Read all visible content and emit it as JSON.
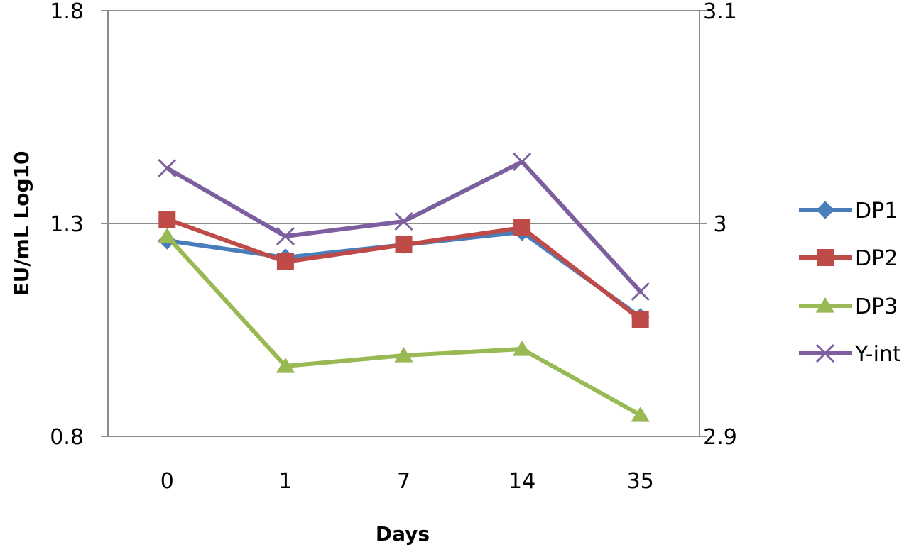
{
  "chart_data": {
    "type": "line",
    "title": "",
    "xlabel": "Days",
    "ylabel": "EU/mL Log10",
    "categories": [
      "0",
      "1",
      "7",
      "14",
      "35"
    ],
    "y_left": {
      "min": 0.8,
      "max": 1.8,
      "ticks": [
        "0.8",
        "1.3",
        "1.8"
      ],
      "tick_values": [
        0.8,
        1.3,
        1.8
      ]
    },
    "y_right": {
      "min": 2.9,
      "max": 3.1,
      "ticks": [
        "2.9",
        "3",
        "3.1"
      ],
      "tick_values": [
        2.9,
        3.0,
        3.1
      ]
    },
    "gridlines": [
      1.3,
      1.8
    ],
    "legend_position": "right",
    "series": [
      {
        "name": "DP1",
        "axis": "left",
        "color": "#4a7ebb",
        "marker": "diamond",
        "values": [
          1.26,
          1.22,
          1.25,
          1.28,
          1.08
        ]
      },
      {
        "name": "DP2",
        "axis": "left",
        "color": "#be4b48",
        "marker": "square",
        "values": [
          1.31,
          1.21,
          1.25,
          1.29,
          1.075
        ]
      },
      {
        "name": "DP3",
        "axis": "left",
        "color": "#98b954",
        "marker": "triangle",
        "values": [
          1.27,
          0.965,
          0.99,
          1.005,
          0.85
        ]
      },
      {
        "name": "Y-int",
        "axis": "right",
        "color": "#7d5fa0",
        "marker": "x",
        "values": [
          3.026,
          2.994,
          3.001,
          3.029,
          2.968
        ]
      }
    ]
  }
}
